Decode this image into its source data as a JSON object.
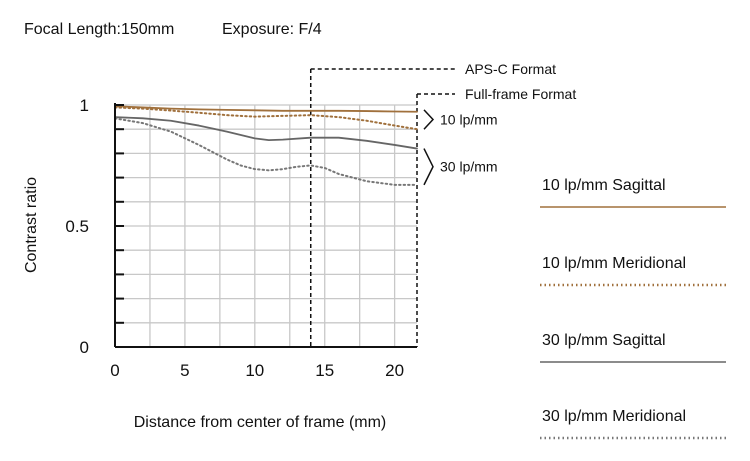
{
  "header": {
    "focal_length": "Focal Length:150mm",
    "exposure": "Exposure: F/4"
  },
  "chart_data": {
    "type": "line",
    "title": "",
    "xlabel": "Distance from center of frame (mm)",
    "ylabel": "Contrast ratio",
    "xlim": [
      0,
      21.6
    ],
    "ylim": [
      0,
      1
    ],
    "x_ticks": [
      0,
      5,
      10,
      15,
      20
    ],
    "y_tick_labels": [
      {
        "value": 1,
        "label": "1"
      },
      {
        "value": 0.5,
        "label": "0.5"
      },
      {
        "value": 0,
        "label": "0"
      }
    ],
    "y_minor_step": 0.1,
    "grid": true,
    "legend_position": "right",
    "series": [
      {
        "name": "10 lp/mm Sagittal",
        "color": "#a0703c",
        "dash": "solid",
        "x": [
          0,
          2,
          4,
          6,
          8,
          10,
          12,
          14,
          16,
          18,
          20,
          21.6
        ],
        "y": [
          0.995,
          0.99,
          0.985,
          0.982,
          0.98,
          0.978,
          0.976,
          0.976,
          0.976,
          0.975,
          0.973,
          0.972
        ]
      },
      {
        "name": "10 lp/mm Meridional",
        "color": "#a0703c",
        "dash": "dotted",
        "x": [
          0,
          2,
          4,
          6,
          8,
          10,
          12,
          14,
          16,
          18,
          20,
          21.6
        ],
        "y": [
          0.99,
          0.985,
          0.977,
          0.968,
          0.958,
          0.952,
          0.955,
          0.958,
          0.95,
          0.935,
          0.915,
          0.9
        ]
      },
      {
        "name": "30 lp/mm Sagittal",
        "color": "#666666",
        "dash": "solid",
        "x": [
          0,
          2,
          4,
          6,
          8,
          10,
          11,
          12,
          14,
          16,
          18,
          20,
          21.6
        ],
        "y": [
          0.95,
          0.945,
          0.935,
          0.915,
          0.89,
          0.862,
          0.855,
          0.857,
          0.865,
          0.865,
          0.852,
          0.835,
          0.82
        ]
      },
      {
        "name": "30 lp/mm Meridional",
        "color": "#777777",
        "dash": "dotted",
        "x": [
          0,
          2,
          4,
          6,
          8,
          9,
          10,
          11,
          12,
          13,
          14,
          15,
          16,
          18,
          20,
          21.6
        ],
        "y": [
          0.945,
          0.925,
          0.89,
          0.835,
          0.775,
          0.75,
          0.735,
          0.73,
          0.735,
          0.745,
          0.75,
          0.74,
          0.715,
          0.685,
          0.67,
          0.67
        ]
      }
    ],
    "format_markers": [
      {
        "label": "APS-C Format",
        "x": 14
      },
      {
        "label": "Full-frame Format",
        "x": 21.6
      }
    ],
    "bracket_labels": [
      {
        "label": "10 lp/mm",
        "y_from": 0.9,
        "y_to": 0.98
      },
      {
        "label": "30 lp/mm",
        "y_from": 0.67,
        "y_to": 0.82
      }
    ]
  }
}
